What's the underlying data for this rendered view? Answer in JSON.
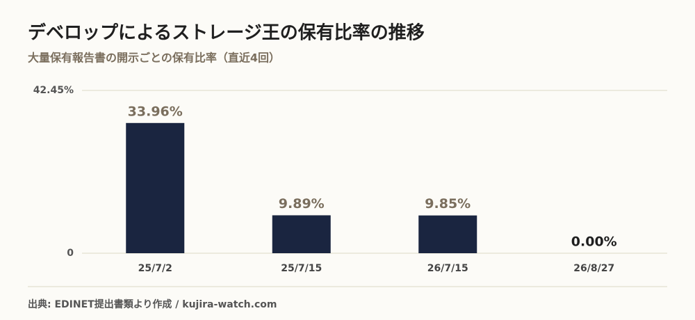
{
  "chart_data": {
    "type": "bar",
    "title": "デベロップによるストレージ王の保有比率の推移",
    "subtitle": "大量保有報告書の開示ごとの保有比率（直近4回）",
    "categories": [
      "25/7/2",
      "25/7/15",
      "26/7/15",
      "26/8/27"
    ],
    "values": [
      33.96,
      9.89,
      9.85,
      0
    ],
    "value_labels": [
      "33.96%",
      "9.89%",
      "9.85%",
      "0.00%"
    ],
    "color": "#1a2540",
    "ylim": [
      0,
      42.45
    ],
    "yticks": [
      0,
      {
        "value": 42.45,
        "label": "42.45%"
      }
    ],
    "grid": true,
    "source": "出典: EDINET提出書類より作成 / kujira-watch.com"
  }
}
